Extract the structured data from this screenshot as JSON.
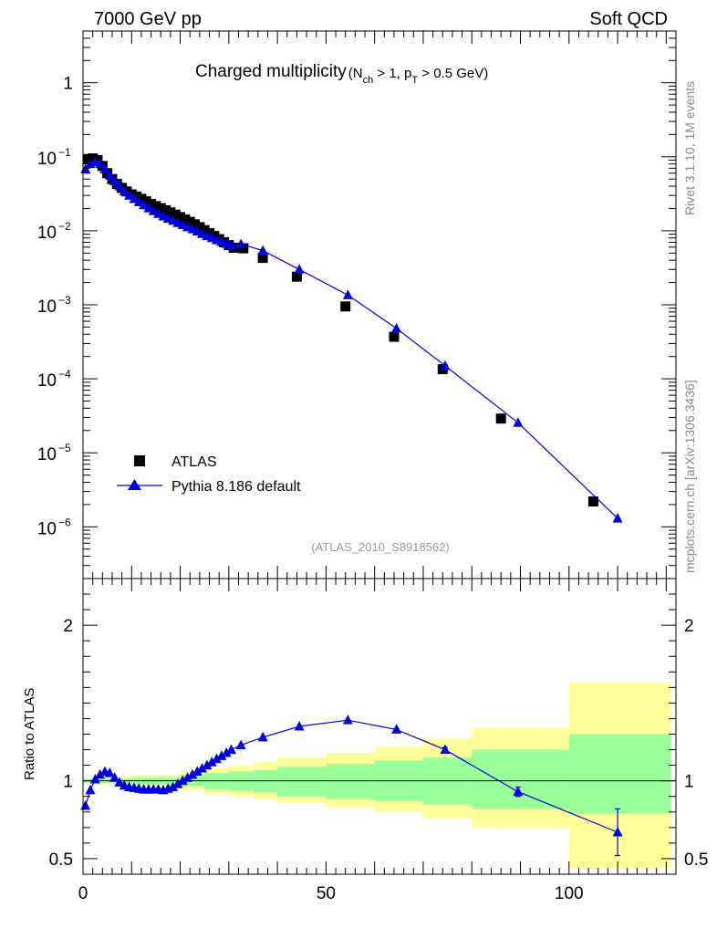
{
  "header": {
    "left": "7000 GeV pp",
    "right": "Soft QCD"
  },
  "side_labels": {
    "rivet": "Rivet 3.1.10,  1M events",
    "mcplots": "mcplots.cern.ch [arXiv:1306.3436]"
  },
  "colors": {
    "data_marker": "#000000",
    "mc_line": "#0000dd",
    "band_inner": "#99ff99",
    "band_outer": "#ffff99"
  },
  "chart_data": [
    {
      "type": "scatter",
      "title": "Charged multiplicity",
      "title_detail": {
        "open": "(N",
        "nch_sub": "ch",
        "mid": " > 1, p",
        "pt_sub": "T",
        "close": " > 0.5 GeV)"
      },
      "yscale": "log",
      "ylim": [
        2e-07,
        5
      ],
      "xlim": [
        0,
        122
      ],
      "y_ticks": [
        {
          "value": 1,
          "base": "1",
          "exp": ""
        },
        {
          "value": 0.1,
          "base": "10",
          "exp": "−1"
        },
        {
          "value": 0.01,
          "base": "10",
          "exp": "−2"
        },
        {
          "value": 0.001,
          "base": "10",
          "exp": "−3"
        },
        {
          "value": 0.0001,
          "base": "10",
          "exp": "−4"
        },
        {
          "value": 1e-05,
          "base": "10",
          "exp": "−5"
        },
        {
          "value": 1e-06,
          "base": "10",
          "exp": "−6"
        }
      ],
      "reference_label": "(ATLAS_2010_S8918562)",
      "legend": {
        "position": "bottom-left",
        "entries": [
          "ATLAS",
          "Pythia 8.186 default"
        ]
      },
      "series": [
        {
          "name": "ATLAS",
          "x": [
            1,
            2,
            3,
            4,
            5,
            6,
            7,
            8,
            9,
            10,
            11,
            12,
            13,
            14,
            15,
            16,
            17,
            18,
            19,
            20,
            21,
            22,
            23,
            24,
            25,
            26,
            27,
            28,
            29,
            30,
            31,
            33,
            37,
            44,
            54,
            64,
            74,
            86,
            105
          ],
          "y": [
            0.093,
            0.095,
            0.09,
            0.075,
            0.06,
            0.05,
            0.043,
            0.038,
            0.034,
            0.031,
            0.029,
            0.027,
            0.025,
            0.023,
            0.0215,
            0.0202,
            0.0189,
            0.0177,
            0.0165,
            0.0153,
            0.0142,
            0.0132,
            0.0122,
            0.0112,
            0.0102,
            0.0093,
            0.0085,
            0.0077,
            0.007,
            0.0064,
            0.0059,
            0.0058,
            0.0043,
            0.0024,
            0.00095,
            0.00037,
            0.000135,
            2.9e-05,
            2.2e-06
          ]
        },
        {
          "name": "Pythia 8.186 default",
          "x": [
            0.5,
            1.5,
            2.5,
            3.5,
            4.5,
            5.5,
            6.5,
            7.5,
            8.5,
            9.5,
            10.5,
            11.5,
            12.5,
            13.5,
            14.5,
            15.5,
            16.5,
            17.5,
            18.5,
            19.5,
            20.5,
            21.5,
            22.5,
            23.5,
            24.5,
            25.5,
            26.5,
            27.5,
            28.5,
            29.5,
            30.5,
            32.5,
            37,
            44.5,
            54.5,
            64.5,
            74.5,
            89.5,
            110
          ],
          "y": [
            0.068,
            0.08,
            0.085,
            0.08,
            0.068,
            0.056,
            0.047,
            0.04,
            0.034,
            0.03,
            0.027,
            0.0245,
            0.0222,
            0.0202,
            0.0185,
            0.017,
            0.0157,
            0.0146,
            0.0137,
            0.0128,
            0.012,
            0.0112,
            0.0105,
            0.0098,
            0.0091,
            0.0085,
            0.008,
            0.0075,
            0.0071,
            0.0067,
            0.0064,
            0.0066,
            0.0054,
            0.003,
            0.00135,
            0.00048,
            0.00015,
            2.55e-05,
            1.3e-06
          ]
        }
      ]
    },
    {
      "type": "line",
      "ylabel": "Ratio to ATLAS",
      "xlim": [
        0,
        122
      ],
      "ylim": [
        0.4,
        2.3
      ],
      "x_ticks": [
        0,
        50,
        100
      ],
      "y_ticks": [
        0.5,
        1,
        2
      ],
      "reference_line": 1,
      "bands": {
        "bins": [
          [
            0,
            3
          ],
          [
            3,
            10
          ],
          [
            10,
            20
          ],
          [
            20,
            25
          ],
          [
            25,
            30
          ],
          [
            30,
            35
          ],
          [
            35,
            40
          ],
          [
            40,
            50
          ],
          [
            50,
            60
          ],
          [
            60,
            70
          ],
          [
            70,
            80
          ],
          [
            80,
            100
          ],
          [
            100,
            121
          ]
        ],
        "inner_low": [
          0.99,
          0.985,
          0.98,
          0.965,
          0.945,
          0.935,
          0.925,
          0.9,
          0.885,
          0.87,
          0.85,
          0.82,
          0.79
        ],
        "inner_high": [
          1.01,
          1.015,
          1.02,
          1.035,
          1.05,
          1.06,
          1.07,
          1.09,
          1.11,
          1.13,
          1.15,
          1.2,
          1.3
        ],
        "outer_low": [
          0.985,
          0.975,
          0.965,
          0.94,
          0.915,
          0.9,
          0.88,
          0.86,
          0.83,
          0.8,
          0.76,
          0.7,
          0.44
        ],
        "outer_high": [
          1.015,
          1.025,
          1.035,
          1.06,
          1.08,
          1.1,
          1.12,
          1.15,
          1.18,
          1.22,
          1.27,
          1.34,
          1.63
        ]
      },
      "series": [
        {
          "name": "Pythia 8.186 default",
          "x": [
            0.5,
            1.5,
            2.5,
            3.5,
            4.5,
            5.5,
            6.5,
            7.5,
            8.5,
            9.5,
            10.5,
            11.5,
            12.5,
            13.5,
            14.5,
            15.5,
            16.5,
            17.5,
            18.5,
            19.5,
            20.5,
            21.5,
            22.5,
            23.5,
            24.5,
            25.5,
            26.5,
            27.5,
            28.5,
            29.5,
            30.5,
            32.5,
            37,
            44.5,
            54.5,
            64.5,
            74.5,
            89.5,
            110
          ],
          "y": [
            0.84,
            0.94,
            1.01,
            1.04,
            1.06,
            1.05,
            1.02,
            0.99,
            0.97,
            0.96,
            0.955,
            0.95,
            0.945,
            0.945,
            0.945,
            0.945,
            0.94,
            0.95,
            0.96,
            0.98,
            1.0,
            1.02,
            1.04,
            1.06,
            1.08,
            1.1,
            1.12,
            1.14,
            1.16,
            1.18,
            1.2,
            1.23,
            1.28,
            1.35,
            1.39,
            1.33,
            1.2,
            0.93,
            0.67
          ],
          "err": [
            0,
            0,
            0,
            0,
            0,
            0,
            0,
            0,
            0,
            0,
            0,
            0,
            0,
            0,
            0,
            0,
            0,
            0,
            0,
            0,
            0,
            0,
            0,
            0,
            0,
            0,
            0,
            0,
            0,
            0,
            0,
            0,
            0,
            0,
            0,
            0.005,
            0.015,
            0.03,
            0.15
          ]
        }
      ]
    }
  ]
}
